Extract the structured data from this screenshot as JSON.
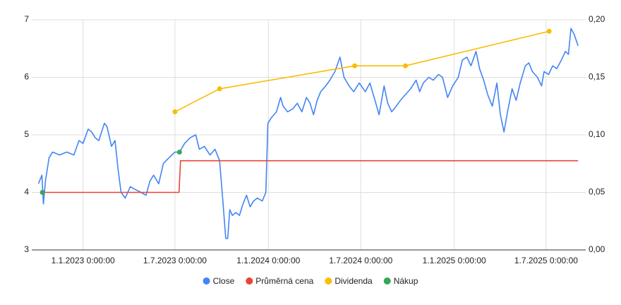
{
  "chart_data": {
    "type": "line",
    "xlim": [
      "2022-09-22",
      "2025-09-17"
    ],
    "xticks": [
      {
        "value": "2023-01-01",
        "label": "1.1.2023 0:00:00"
      },
      {
        "value": "2023-07-01",
        "label": "1.7.2023 0:00:00"
      },
      {
        "value": "2024-01-01",
        "label": "1.1.2024 0:00:00"
      },
      {
        "value": "2024-07-01",
        "label": "1.7.2024 0:00:00"
      },
      {
        "value": "2025-01-01",
        "label": "1.1.2025 0:00:00"
      },
      {
        "value": "2025-07-01",
        "label": "1.7.2025 0:00:00"
      }
    ],
    "ylim": [
      3,
      7
    ],
    "yticks": [
      3,
      4,
      5,
      6,
      7
    ],
    "y2lim": [
      0,
      0.2
    ],
    "y2ticks": [
      {
        "value": 0,
        "label": "0,00"
      },
      {
        "value": 0.05,
        "label": "0,05"
      },
      {
        "value": 0.1,
        "label": "0,10"
      },
      {
        "value": 0.15,
        "label": "0,15"
      },
      {
        "value": 0.2,
        "label": "0,20"
      }
    ],
    "grid": true,
    "legend": "bottom",
    "series": [
      {
        "name": "Close",
        "color": "#4285f4",
        "line": true,
        "marker": false,
        "x": [
          "2022-10-05",
          "2022-10-12",
          "2022-10-15",
          "2022-10-19",
          "2022-10-26",
          "2022-11-02",
          "2022-11-16",
          "2022-11-30",
          "2022-12-14",
          "2022-12-24",
          "2023-01-01",
          "2023-01-11",
          "2023-01-18",
          "2023-01-25",
          "2023-02-01",
          "2023-02-12",
          "2023-02-17",
          "2023-02-26",
          "2023-03-05",
          "2023-03-11",
          "2023-03-17",
          "2023-03-25",
          "2023-04-04",
          "2023-04-14",
          "2023-04-25",
          "2023-05-05",
          "2023-05-13",
          "2023-05-20",
          "2023-05-30",
          "2023-06-08",
          "2023-06-19",
          "2023-07-01",
          "2023-07-10",
          "2023-07-20",
          "2023-07-31",
          "2023-08-11",
          "2023-08-18",
          "2023-08-28",
          "2023-09-08",
          "2023-09-18",
          "2023-09-27",
          "2023-10-03",
          "2023-10-09",
          "2023-10-13",
          "2023-10-17",
          "2023-10-22",
          "2023-10-29",
          "2023-11-05",
          "2023-11-12",
          "2023-11-19",
          "2023-11-26",
          "2023-12-03",
          "2023-12-10",
          "2023-12-20",
          "2023-12-27",
          "2023-12-31",
          "2024-01-07",
          "2024-01-17",
          "2024-01-25",
          "2024-01-30",
          "2024-02-08",
          "2024-02-18",
          "2024-02-27",
          "2024-03-07",
          "2024-03-16",
          "2024-03-23",
          "2024-03-30",
          "2024-04-06",
          "2024-04-13",
          "2024-04-23",
          "2024-05-01",
          "2024-05-11",
          "2024-05-21",
          "2024-05-29",
          "2024-06-08",
          "2024-06-17",
          "2024-06-28",
          "2024-07-10",
          "2024-07-19",
          "2024-07-29",
          "2024-08-06",
          "2024-08-16",
          "2024-08-23",
          "2024-08-31",
          "2024-09-09",
          "2024-09-17",
          "2024-09-27",
          "2024-10-07",
          "2024-10-18",
          "2024-10-25",
          "2024-11-01",
          "2024-11-12",
          "2024-11-21",
          "2024-12-01",
          "2024-12-09",
          "2024-12-19",
          "2024-12-29",
          "2025-01-09",
          "2025-01-17",
          "2025-01-26",
          "2025-02-03",
          "2025-02-13",
          "2025-02-20",
          "2025-02-28",
          "2025-03-08",
          "2025-03-17",
          "2025-03-26",
          "2025-04-02",
          "2025-04-09",
          "2025-04-16",
          "2025-04-25",
          "2025-05-03",
          "2025-05-11",
          "2025-05-21",
          "2025-05-28",
          "2025-06-04",
          "2025-06-14",
          "2025-06-22",
          "2025-06-27",
          "2025-07-06",
          "2025-07-14",
          "2025-07-22",
          "2025-07-31",
          "2025-08-08",
          "2025-08-14",
          "2025-08-19",
          "2025-08-25",
          "2025-09-02"
        ],
        "values": [
          4.15,
          4.3,
          3.8,
          4.2,
          4.6,
          4.7,
          4.65,
          4.7,
          4.65,
          4.9,
          4.85,
          5.1,
          5.05,
          4.95,
          4.9,
          5.2,
          5.15,
          4.8,
          4.9,
          4.4,
          4.0,
          3.9,
          4.1,
          4.05,
          4.0,
          3.95,
          4.2,
          4.3,
          4.15,
          4.5,
          4.6,
          4.7,
          4.7,
          4.85,
          4.95,
          5.0,
          4.75,
          4.8,
          4.65,
          4.75,
          4.55,
          3.9,
          3.2,
          3.2,
          3.7,
          3.6,
          3.65,
          3.6,
          3.8,
          3.95,
          3.75,
          3.85,
          3.9,
          3.85,
          4.0,
          5.2,
          5.3,
          5.4,
          5.65,
          5.5,
          5.4,
          5.45,
          5.55,
          5.4,
          5.65,
          5.55,
          5.35,
          5.6,
          5.75,
          5.85,
          5.95,
          6.1,
          6.35,
          6.0,
          5.85,
          5.75,
          5.9,
          5.75,
          5.9,
          5.6,
          5.35,
          5.85,
          5.55,
          5.4,
          5.5,
          5.6,
          5.7,
          5.8,
          5.95,
          5.75,
          5.9,
          6.0,
          5.95,
          6.05,
          6.0,
          5.65,
          5.85,
          6.0,
          6.3,
          6.35,
          6.2,
          6.45,
          6.15,
          5.95,
          5.7,
          5.5,
          5.9,
          5.35,
          5.05,
          5.4,
          5.8,
          5.6,
          5.9,
          6.2,
          6.25,
          6.1,
          6.0,
          5.85,
          6.1,
          6.05,
          6.2,
          6.15,
          6.3,
          6.45,
          6.4,
          6.85,
          6.75,
          6.55
        ]
      },
      {
        "name": "Průměrná cena",
        "color": "#ea4335",
        "line": true,
        "marker": false,
        "x": [
          "2022-10-12",
          "2023-07-09",
          "2023-07-12",
          "2025-09-02"
        ],
        "values": [
          4.0,
          4.0,
          4.55,
          4.55
        ]
      },
      {
        "name": "Dividenda",
        "color": "#fbbc04",
        "line": true,
        "marker": true,
        "axis": "y2",
        "x": [
          "2023-07-01",
          "2023-09-27",
          "2024-06-19",
          "2024-09-27",
          "2025-07-07"
        ],
        "values": [
          0.12,
          0.14,
          0.16,
          0.16,
          0.19
        ]
      },
      {
        "name": "Nákup",
        "color": "#34a853",
        "line": false,
        "marker": true,
        "x": [
          "2022-10-13",
          "2023-07-10"
        ],
        "values": [
          4.0,
          4.7
        ]
      }
    ]
  }
}
